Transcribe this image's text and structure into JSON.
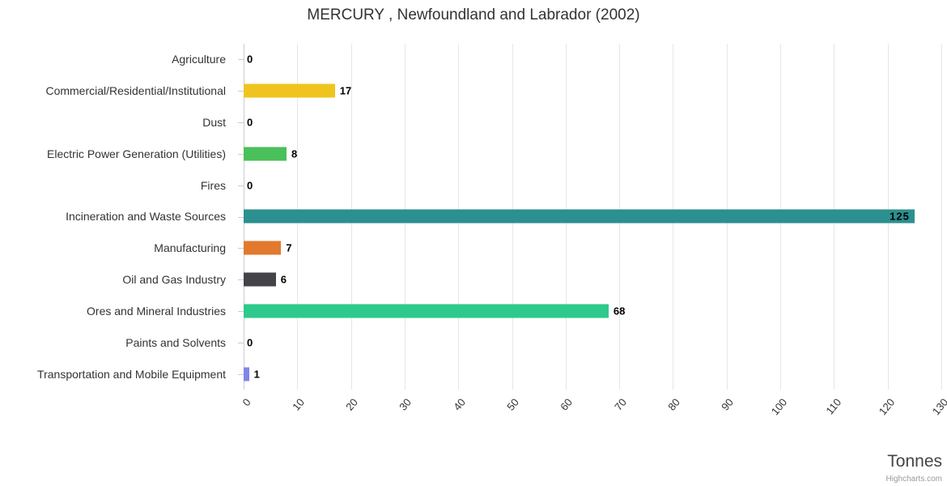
{
  "title": "MERCURY , Newfoundland and Labrador (2002)",
  "credits": "Highcharts.com",
  "chart_data": {
    "type": "bar",
    "orientation": "horizontal",
    "title": "MERCURY , Newfoundland and Labrador (2002)",
    "categories": [
      "Agriculture",
      "Commercial/Residential/Institutional",
      "Dust",
      "Electric Power Generation (Utilities)",
      "Fires",
      "Incineration and Waste Sources",
      "Manufacturing",
      "Oil and Gas Industry",
      "Ores and Mineral Industries",
      "Paints and Solvents",
      "Transportation and Mobile Equipment"
    ],
    "values": [
      0,
      17,
      0,
      8,
      0,
      125,
      7,
      6,
      68,
      0,
      1
    ],
    "colors": [
      null,
      "#f0c41e",
      null,
      "#4ac05a",
      null,
      "#2b908f",
      "#e2792e",
      "#434348",
      "#2ec98c",
      null,
      "#8085e9"
    ],
    "xlabel": "Tonnes",
    "ylabel": "",
    "xlim": [
      0,
      130
    ],
    "xticks": [
      0,
      10,
      20,
      30,
      40,
      50,
      60,
      70,
      80,
      90,
      100,
      110,
      120,
      130
    ],
    "grid": true,
    "legend": false,
    "grid_color": "#e6e6e6",
    "label_color": "#333333"
  }
}
